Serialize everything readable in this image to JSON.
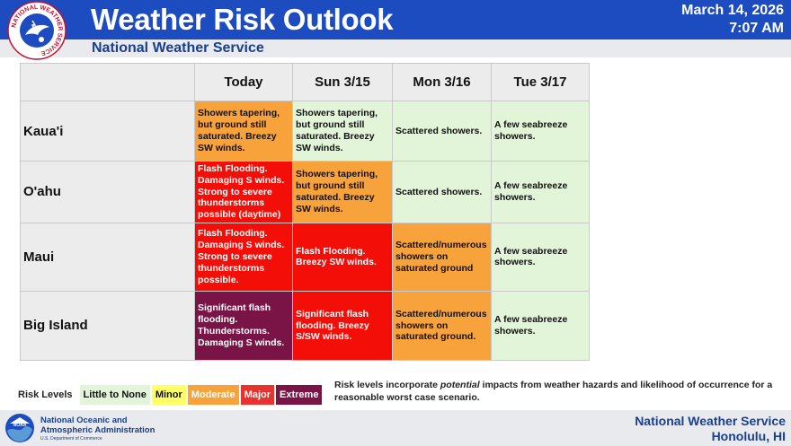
{
  "header": {
    "title": "Weather Risk Outlook",
    "subtitle": "National Weather Service",
    "date": "March 14, 2026",
    "time": "7:07 AM",
    "logo_ring_text": "NATIONAL WEATHER SERVICE"
  },
  "table": {
    "columns": [
      "Today",
      "Sun 3/15",
      "Mon 3/16",
      "Tue 3/17"
    ],
    "rows": [
      {
        "location": "Kaua'i",
        "cells": [
          {
            "text": "Showers tapering, but ground still saturated. Breezy SW winds.",
            "level": "Moderate"
          },
          {
            "text": "Showers tapering, but ground still saturated. Breezy SW winds.",
            "level": "Little to None"
          },
          {
            "text": "Scattered showers.",
            "level": "Little to None"
          },
          {
            "text": "A few seabreeze showers.",
            "level": "Little to None"
          }
        ]
      },
      {
        "location": "O'ahu",
        "cells": [
          {
            "text": "Flash Flooding. Damaging S winds. Strong to severe thunderstorms possible (daytime)",
            "level": "Major"
          },
          {
            "text": "Showers tapering, but ground still saturated. Breezy SW winds.",
            "level": "Moderate"
          },
          {
            "text": "Scattered showers.",
            "level": "Little to None"
          },
          {
            "text": "A few seabreeze showers.",
            "level": "Little to None"
          }
        ]
      },
      {
        "location": "Maui",
        "cells": [
          {
            "text": "Flash Flooding. Damaging S winds. Strong to severe thunderstorms possible.",
            "level": "Major"
          },
          {
            "text": "Flash Flooding. Breezy SW winds.",
            "level": "Major"
          },
          {
            "text": "Scattered/numerous showers on saturated ground",
            "level": "Moderate"
          },
          {
            "text": "A few seabreeze showers.",
            "level": "Little to None"
          }
        ]
      },
      {
        "location": "Big Island",
        "cells": [
          {
            "text": "Significant flash flooding. Thunderstorms. Damaging S winds.",
            "level": "Extreme"
          },
          {
            "text": "Significant flash flooding. Breezy S/SW winds.",
            "level": "Major"
          },
          {
            "text": "Scattered/numerous showers on saturated ground.",
            "level": "Moderate"
          },
          {
            "text": "A few seabreeze showers.",
            "level": "Little to None"
          }
        ]
      }
    ]
  },
  "legend": {
    "label": "Risk Levels",
    "items": [
      {
        "name": "Little to None",
        "color": "#e2f5d9",
        "text_color": "#111111"
      },
      {
        "name": "Minor",
        "color": "#ffff66",
        "text_color": "#111111"
      },
      {
        "name": "Moderate",
        "color": "#f7a23a",
        "text_color": "#ffffff"
      },
      {
        "name": "Major",
        "color": "#e8322e",
        "text_color": "#ffffff"
      },
      {
        "name": "Extreme",
        "color": "#7b1446",
        "text_color": "#ffffff"
      }
    ],
    "note_prefix": "Risk levels incorporate ",
    "note_emphasis": "potential",
    "note_suffix": " impacts from weather hazards and likelihood of occurrence for a reasonable worst case scenario."
  },
  "footer": {
    "agency_line1": "National Oceanic and",
    "agency_line2": "Atmospheric Administration",
    "agency_line3": "U.S. Department of Commerce",
    "noaa_logo_text": "NOAA",
    "office": "National Weather Service",
    "city": "Honolulu, HI"
  },
  "icons": {
    "nws_logo": "nws-logo-icon",
    "noaa_logo": "noaa-logo-icon"
  }
}
